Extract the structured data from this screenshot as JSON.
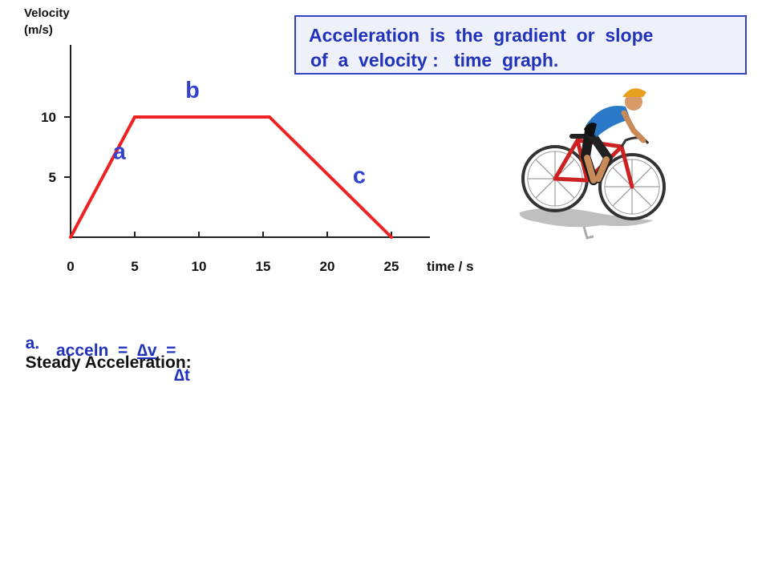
{
  "header": {
    "info_line1": "Acceleration  is  the  gradient  or  slope",
    "info_line2": "of  a  velocity :   time  graph."
  },
  "chart_data": {
    "type": "line",
    "ylabel_line1": "Velocity",
    "ylabel_line2": "(m/s)",
    "xlabel": "time / s",
    "x_ticks": [
      0,
      5,
      10,
      15,
      20,
      25
    ],
    "y_ticks": [
      5,
      10
    ],
    "xlim": [
      0,
      28
    ],
    "ylim": [
      0,
      16
    ],
    "series": [
      {
        "color": "#ee2222",
        "points": [
          [
            0,
            0
          ],
          [
            5,
            10
          ],
          [
            15.5,
            10
          ],
          [
            25,
            0
          ]
        ]
      }
    ],
    "segment_labels": [
      {
        "label": "a",
        "x": 3.8,
        "y": 6.5
      },
      {
        "label": "b",
        "x": 9.5,
        "y": 11.6
      },
      {
        "label": "c",
        "x": 22.5,
        "y": 4.5
      }
    ]
  },
  "explanation": {
    "item_letter": "a.",
    "heading": "Steady Acceleration:",
    "formula_prefix": "acceln  =  ",
    "numerator": "∆v",
    "formula_suffix": "  =",
    "denominator": "∆t"
  },
  "colors": {
    "line": "#ee2222",
    "accent": "#2233bb",
    "box_border": "#3344bb"
  },
  "illustration": "cyclist-icon"
}
